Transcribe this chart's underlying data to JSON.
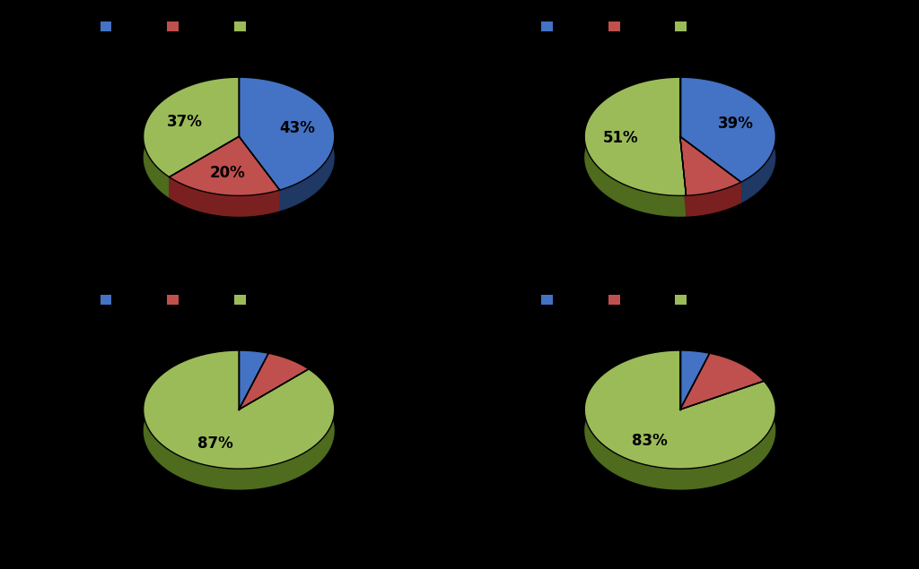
{
  "charts": [
    {
      "values": [
        43,
        20,
        37
      ],
      "pct": [
        "43%",
        "20%",
        "37%"
      ],
      "start_angle": 90
    },
    {
      "values": [
        39,
        10,
        51
      ],
      "pct": [
        "39%",
        "",
        "51%"
      ],
      "start_angle": 90
    },
    {
      "values": [
        5,
        8,
        87
      ],
      "pct": [
        "",
        "",
        "87%"
      ],
      "start_angle": 90
    },
    {
      "values": [
        5,
        12,
        83
      ],
      "pct": [
        "",
        "",
        "83%"
      ],
      "start_angle": 90
    }
  ],
  "colors": [
    "#4472C4",
    "#C0504D",
    "#9BBB59"
  ],
  "colors_dark": [
    "#1F3864",
    "#7B2020",
    "#4E6B1E"
  ],
  "background": "#000000"
}
